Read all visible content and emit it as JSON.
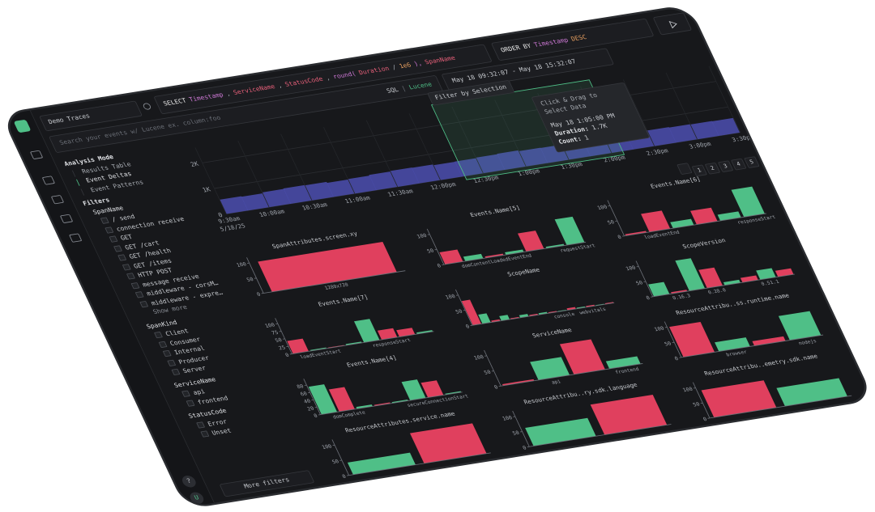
{
  "query": {
    "source": "Demo Traces",
    "select_tokens": [
      {
        "text": "SELECT",
        "color": "#e8e8e8"
      },
      {
        "text": "Timestamp",
        "color": "#d07ad8"
      },
      {
        "text": ",",
        "color": "#9aa0a8"
      },
      {
        "text": "ServiceName",
        "color": "#e8607a"
      },
      {
        "text": ",",
        "color": "#9aa0a8"
      },
      {
        "text": "StatusCode",
        "color": "#e8607a"
      },
      {
        "text": ",",
        "color": "#9aa0a8"
      },
      {
        "text": "round(",
        "color": "#d07ad8"
      },
      {
        "text": "Duration",
        "color": "#e8607a"
      },
      {
        "text": "/",
        "color": "#9aa0a8"
      },
      {
        "text": "1e6",
        "color": "#e8a060"
      },
      {
        "text": "),",
        "color": "#d07ad8"
      },
      {
        "text": "SpanName",
        "color": "#e8607a"
      }
    ],
    "order_tokens": [
      {
        "text": "ORDER BY",
        "color": "#e8e8e8"
      },
      {
        "text": "Timestamp",
        "color": "#d07ad8"
      },
      {
        "text": "DESC",
        "color": "#e8a060"
      }
    ],
    "search_placeholder": "Search your events w/ Lucene ex. column:foo",
    "lang_sql": "SQL",
    "lang_sep": "|",
    "lang_lucene": "Lucene",
    "time_range": "May 18 09:32:07 - May 18 15:32:07"
  },
  "sidebar": {
    "analysis_title": "Analysis Mode",
    "modes": [
      "Results Table",
      "Event Deltas",
      "Event Patterns"
    ],
    "filters_title": "Filters",
    "groups": [
      {
        "name": "SpanName",
        "items": [
          "/ send",
          "connection receive",
          "GET",
          "GET /cart",
          "GET /health",
          "GET /items",
          "HTTP POST",
          "message receive",
          "middleware - corsM…",
          "middleware - expre…"
        ],
        "more": "Show more"
      },
      {
        "name": "SpanKind",
        "items": [
          "Client",
          "Consumer",
          "Internal",
          "Producer",
          "Server"
        ]
      },
      {
        "name": "ServiceName",
        "items": [
          "api",
          "frontend"
        ]
      },
      {
        "name": "StatusCode",
        "items": [
          "Error",
          "Unset"
        ]
      }
    ],
    "more_filters": "More filters",
    "help": "?",
    "user": "U"
  },
  "overlay": {
    "filter_button": "Filter by Selection",
    "tooltip": {
      "hint": "Click & Drag to Select Data",
      "time": "May 18 1:05:00 PM",
      "rows": [
        {
          "label": "Duration:",
          "value": "1.7K"
        },
        {
          "label": "Count:",
          "value": "1"
        }
      ]
    }
  },
  "pagination": {
    "pages": [
      "1",
      "2",
      "3",
      "4",
      "5"
    ]
  },
  "chart_data": [
    {
      "type": "histogram",
      "color": "#4c4fb0",
      "values": [
        560,
        540,
        580,
        600,
        590,
        550,
        570,
        600,
        620,
        610,
        580,
        590,
        610,
        630,
        600,
        590,
        570,
        560,
        600,
        620,
        610,
        590,
        580,
        570
      ],
      "ylim": [
        0,
        2600
      ],
      "yticks": [
        0,
        {
          "value": 1000,
          "label": "1K"
        },
        {
          "value": 2000,
          "label": "2K"
        }
      ],
      "x_tick_labels": [
        "9:30am",
        "10:00am",
        "10:30am",
        "11:00am",
        "11:30am",
        "12:00pm",
        "12:30pm",
        "1:00pm",
        "1:30pm",
        "2:00pm",
        "2:30pm",
        "3:00pm",
        "3:30pm"
      ],
      "date_label": "5/18/25"
    },
    {
      "type": "bar",
      "title": "SpanAttributes.screen.xy",
      "categories": [
        "1280x720"
      ],
      "values": [
        100
      ],
      "colors": [
        "#e0405e"
      ],
      "ylim": [
        0,
        110
      ],
      "yticks": [
        0,
        50,
        100
      ]
    },
    {
      "type": "bar",
      "title": "Events.Name[5]",
      "categories": [
        null,
        null,
        "domContentLoadedEventEnd",
        null,
        null,
        null,
        "requestStart"
      ],
      "values": [
        40,
        15,
        5,
        8,
        60,
        5,
        85
      ],
      "colors": [
        "#e0405e",
        "#4fbf87",
        "#e0405e",
        "#4fbf87",
        "#e0405e",
        "#4fbf87",
        "#4fbf87"
      ],
      "ylim": [
        0,
        110
      ],
      "yticks": [
        0,
        50,
        100
      ]
    },
    {
      "type": "bar",
      "title": "Events.Name[6]",
      "categories": [
        null,
        "loadEventEnd",
        null,
        null,
        null,
        "responseStart"
      ],
      "values": [
        5,
        60,
        20,
        45,
        20,
        90
      ],
      "colors": [
        "#e0405e",
        "#e0405e",
        "#4fbf87",
        "#e0405e",
        "#4fbf87",
        "#4fbf87"
      ],
      "ylim": [
        0,
        110
      ],
      "yticks": [
        0,
        50,
        100
      ]
    },
    {
      "type": "bar",
      "title": "Events.Name[7]",
      "categories": [
        null,
        "loadEventStart",
        null,
        null,
        null,
        "responseStart",
        null,
        null
      ],
      "values": [
        42,
        3,
        2,
        4,
        70,
        30,
        22,
        5
      ],
      "colors": [
        "#e0405e",
        "#4fbf87",
        "#e0405e",
        "#4fbf87",
        "#4fbf87",
        "#e0405e",
        "#e0405e",
        "#4fbf87"
      ],
      "ylim": [
        0,
        110
      ],
      "yticks": [
        0,
        25,
        50,
        75,
        100
      ]
    },
    {
      "type": "bar",
      "title": "ScopeName",
      "categories": [
        null,
        null,
        null,
        null,
        null,
        null,
        null,
        null,
        null,
        "console",
        null,
        null,
        "webvitals",
        null,
        null
      ],
      "values": [
        80,
        30,
        5,
        15,
        3,
        8,
        4,
        5,
        3,
        2,
        6,
        3,
        4,
        2,
        3
      ],
      "colors": [
        "#e0405e",
        "#4fbf87",
        "#e0405e",
        "#4fbf87",
        "#e0405e",
        "#4fbf87",
        "#e0405e",
        "#4fbf87",
        "#e0405e",
        "#4fbf87",
        "#e0405e",
        "#4fbf87",
        "#e0405e",
        "#4fbf87",
        "#e0405e"
      ],
      "ylim": [
        0,
        110
      ],
      "yticks": [
        0,
        50,
        100
      ]
    },
    {
      "type": "bar",
      "title": "ScopeVersion",
      "categories": [
        null,
        "0.16.3",
        null,
        "0.28.0",
        null,
        null,
        "0.51.1",
        null
      ],
      "values": [
        40,
        5,
        100,
        60,
        10,
        15,
        30,
        20
      ],
      "colors": [
        "#4fbf87",
        "#e0405e",
        "#4fbf87",
        "#e0405e",
        "#4fbf87",
        "#e0405e",
        "#4fbf87",
        "#e0405e"
      ],
      "ylim": [
        0,
        110
      ],
      "yticks": [
        0,
        50,
        100
      ]
    },
    {
      "type": "bar",
      "title": "Events.Name[4]",
      "categories": [
        null,
        "domComplete",
        null,
        null,
        null,
        null,
        "secureConnectionStart",
        null
      ],
      "values": [
        75,
        60,
        5,
        3,
        3,
        50,
        40,
        3
      ],
      "colors": [
        "#4fbf87",
        "#e0405e",
        "#4fbf87",
        "#e0405e",
        "#4fbf87",
        "#4fbf87",
        "#e0405e",
        "#4fbf87"
      ],
      "ylim": [
        0,
        90
      ],
      "yticks": [
        0,
        20,
        40,
        60,
        80
      ]
    },
    {
      "type": "bar",
      "title": "ServiceName",
      "categories": [
        null,
        "api",
        null,
        "frontend"
      ],
      "values": [
        5,
        60,
        100,
        25
      ],
      "colors": [
        "#e0405e",
        "#4fbf87",
        "#e0405e",
        "#4fbf87"
      ],
      "ylim": [
        0,
        110
      ],
      "yticks": [
        0,
        50,
        100
      ]
    },
    {
      "type": "bar",
      "title": "ResourceAttribu..ss.runtime.name",
      "categories": [
        null,
        "browser",
        null,
        "nodejs"
      ],
      "values": [
        100,
        30,
        15,
        80
      ],
      "colors": [
        "#e0405e",
        "#4fbf87",
        "#e0405e",
        "#4fbf87"
      ],
      "ylim": [
        0,
        110
      ],
      "yticks": [
        0,
        50,
        100
      ]
    },
    {
      "type": "bar",
      "title": "ResourceAttributes.service.name",
      "categories": [
        null,
        null
      ],
      "values": [
        40,
        100
      ],
      "colors": [
        "#4fbf87",
        "#e0405e"
      ],
      "ylim": [
        0,
        110
      ],
      "yticks": [
        0,
        50,
        100
      ]
    },
    {
      "type": "bar",
      "title": "ResourceAttribu..ry.sdk.language",
      "categories": [
        null,
        null
      ],
      "values": [
        60,
        100
      ],
      "colors": [
        "#4fbf87",
        "#e0405e"
      ],
      "ylim": [
        0,
        110
      ],
      "yticks": [
        0,
        50,
        100
      ]
    },
    {
      "type": "bar",
      "title": "ResourceAttribu..emetry.sdk.name",
      "categories": [
        null,
        null
      ],
      "values": [
        90,
        60
      ],
      "colors": [
        "#e0405e",
        "#4fbf87"
      ],
      "ylim": [
        0,
        110
      ],
      "yticks": [
        0,
        50,
        100
      ]
    }
  ]
}
